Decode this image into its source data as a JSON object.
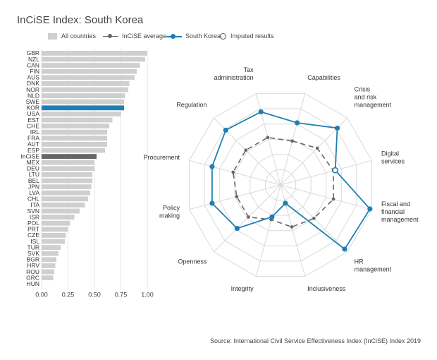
{
  "title": "InCiSE Index: South Korea",
  "legend": {
    "all_countries": "All countries",
    "incise_average": "InCiSE average",
    "south_korea": "South Korea",
    "imputed": "Imputed results"
  },
  "colors": {
    "bar": "#cfcfcf",
    "highlight": "#1f7fb4",
    "average_bar": "#666666",
    "average_line": "#666666",
    "grid": "#d9d9d9"
  },
  "source": "Source: International Civil Service Effectiveness Index (InCiSE) Index 2019",
  "chart_data": [
    {
      "type": "bar",
      "orientation": "horizontal",
      "categories": [
        "GBR",
        "NZL",
        "CAN",
        "FIN",
        "AUS",
        "DNK",
        "NOR",
        "NLD",
        "SWE",
        "KOR",
        "USA",
        "EST",
        "CHE",
        "IRL",
        "FRA",
        "AUT",
        "ESP",
        "InCiSE",
        "MEX",
        "DEU",
        "LTU",
        "BEL",
        "JPN",
        "LVA",
        "CHL",
        "ITA",
        "SVN",
        "ISR",
        "POL",
        "PRT",
        "CZE",
        "ISL",
        "TUR",
        "SVK",
        "BGR",
        "HRV",
        "ROU",
        "GRC",
        "HUN"
      ],
      "values": [
        1.0,
        0.98,
        0.93,
        0.9,
        0.88,
        0.83,
        0.82,
        0.79,
        0.78,
        0.78,
        0.75,
        0.67,
        0.64,
        0.62,
        0.62,
        0.62,
        0.6,
        0.52,
        0.5,
        0.5,
        0.48,
        0.48,
        0.47,
        0.46,
        0.44,
        0.41,
        0.36,
        0.31,
        0.27,
        0.25,
        0.23,
        0.22,
        0.18,
        0.16,
        0.14,
        0.13,
        0.12,
        0.11,
        0.0
      ],
      "highlight": "KOR",
      "average_category": "InCiSE",
      "xticks": [
        "0.00",
        "0.25",
        "0.50",
        "0.75",
        "1.00"
      ],
      "xlim": [
        0,
        1
      ],
      "grid": true
    },
    {
      "type": "radar",
      "axes": [
        "Capabilities",
        "Crisis and risk management",
        "Digital services",
        "Fiscal and financial management",
        "HR management",
        "Inclusiveness",
        "Integrity",
        "Openness",
        "Policy making",
        "Procurement",
        "Regulation",
        "Tax administration"
      ],
      "axis_labels": [
        [
          "Capabilities"
        ],
        [
          "Crisis",
          "and risk",
          "management"
        ],
        [
          "Digital",
          "services"
        ],
        [
          "Fiscal and",
          "financial",
          "management"
        ],
        [
          "HR",
          "management"
        ],
        [
          "Inclusiveness"
        ],
        [
          "Integrity"
        ],
        [
          "Openness"
        ],
        [
          "Policy",
          "making"
        ],
        [
          "Procurement"
        ],
        [
          "Regulation"
        ],
        [
          "Tax",
          "administration"
        ]
      ],
      "series": [
        {
          "name": "InCiSE average",
          "values": [
            0.48,
            0.55,
            0.58,
            0.58,
            0.5,
            0.46,
            0.38,
            0.48,
            0.48,
            0.52,
            0.52,
            0.52
          ],
          "style": "dashed"
        },
        {
          "name": "South Korea",
          "values": [
            0.68,
            0.85,
            0.6,
            0.98,
            0.96,
            0.2,
            0.35,
            0.65,
            0.75,
            0.75,
            0.82,
            0.8
          ]
        }
      ],
      "imputed": [
        "Digital services"
      ],
      "range": [
        0,
        1
      ],
      "grid_levels": 6
    }
  ]
}
